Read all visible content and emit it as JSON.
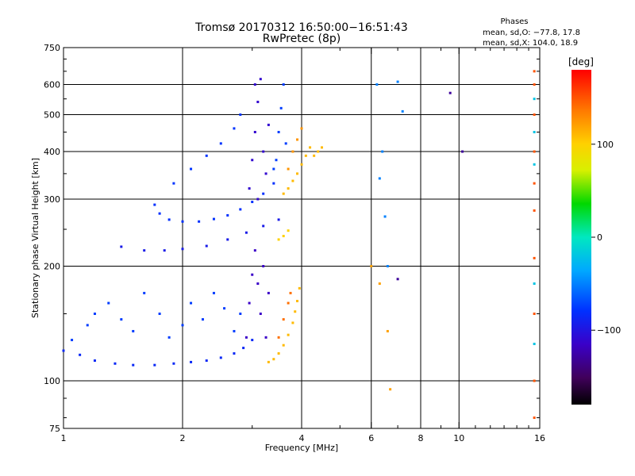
{
  "chart_data": {
    "type": "scatter",
    "title": "Tromsø 20170312 16:50:00−16:51:43",
    "subtitle": "RwPretec (8p)",
    "info": {
      "heading": "Phases",
      "line1": "mean, sd,O: −77.8, 17.8",
      "line2": "mean, sd,X: 104.0, 18.9"
    },
    "xlabel": "Frequency [MHz]",
    "ylabel": "Stationary phase Virtual Height [km]",
    "x_scale": "log",
    "y_scale": "log",
    "xlim": [
      1,
      16
    ],
    "ylim": [
      75,
      750
    ],
    "x_ticks": [
      1,
      2,
      4,
      6,
      8,
      10,
      16
    ],
    "x_tick_labels": [
      "1",
      "2",
      "4",
      "6",
      "8",
      "10",
      "16"
    ],
    "x_gridlines": [
      2,
      4,
      6,
      8,
      10
    ],
    "y_ticks": [
      75,
      100,
      200,
      300,
      400,
      500,
      600,
      750
    ],
    "y_tick_labels": [
      "75",
      "100",
      "200",
      "300",
      "400",
      "500",
      "600",
      "750"
    ],
    "y_gridlines": [
      100,
      200,
      300,
      400,
      500,
      600
    ],
    "colorbar": {
      "label": "[deg]",
      "range": [
        -180,
        180
      ],
      "ticks": [
        -100,
        0,
        100
      ],
      "tick_labels": [
        "−100",
        "0",
        "100"
      ],
      "colormap": "rainbow (black→purple→blue→cyan→green→yellow→orange→red)"
    },
    "series": [
      {
        "phase": -85,
        "points": [
          [
            1.0,
            120
          ],
          [
            1.1,
            117
          ],
          [
            1.2,
            113
          ],
          [
            1.35,
            111
          ],
          [
            1.5,
            110
          ],
          [
            1.7,
            110
          ],
          [
            1.9,
            111
          ],
          [
            2.1,
            112
          ],
          [
            2.3,
            113
          ],
          [
            2.5,
            115
          ],
          [
            2.7,
            118
          ],
          [
            2.85,
            122
          ],
          [
            3.0,
            128
          ]
        ]
      },
      {
        "phase": -75,
        "points": [
          [
            1.05,
            128
          ],
          [
            1.15,
            140
          ],
          [
            1.2,
            150
          ],
          [
            1.3,
            160
          ],
          [
            1.4,
            145
          ],
          [
            1.5,
            135
          ],
          [
            1.6,
            170
          ],
          [
            1.75,
            150
          ],
          [
            1.85,
            130
          ],
          [
            2.0,
            140
          ],
          [
            2.1,
            160
          ],
          [
            2.25,
            145
          ],
          [
            2.4,
            170
          ],
          [
            2.55,
            155
          ],
          [
            2.7,
            135
          ],
          [
            2.8,
            150
          ]
        ]
      },
      {
        "phase": -115,
        "points": [
          [
            2.9,
            130
          ],
          [
            2.95,
            160
          ],
          [
            3.0,
            190
          ],
          [
            3.05,
            220
          ],
          [
            3.1,
            180
          ],
          [
            3.15,
            150
          ],
          [
            3.2,
            200
          ],
          [
            3.25,
            130
          ],
          [
            3.3,
            170
          ]
        ]
      },
      {
        "phase": -95,
        "points": [
          [
            1.4,
            225
          ],
          [
            1.6,
            220
          ],
          [
            1.8,
            220
          ],
          [
            2.0,
            222
          ],
          [
            2.3,
            226
          ],
          [
            2.6,
            235
          ],
          [
            2.9,
            245
          ],
          [
            3.2,
            255
          ],
          [
            3.5,
            265
          ]
        ]
      },
      {
        "phase": -80,
        "points": [
          [
            1.7,
            290
          ],
          [
            1.75,
            275
          ],
          [
            1.85,
            265
          ],
          [
            2.0,
            262
          ],
          [
            2.2,
            262
          ],
          [
            2.4,
            266
          ],
          [
            2.6,
            272
          ],
          [
            2.8,
            282
          ],
          [
            3.0,
            295
          ],
          [
            3.2,
            310
          ],
          [
            3.4,
            330
          ]
        ]
      },
      {
        "phase": -78,
        "points": [
          [
            1.9,
            330
          ],
          [
            2.1,
            360
          ],
          [
            2.3,
            390
          ],
          [
            2.5,
            420
          ],
          [
            2.7,
            460
          ],
          [
            2.8,
            500
          ]
        ]
      },
      {
        "phase": -110,
        "points": [
          [
            2.95,
            320
          ],
          [
            3.0,
            380
          ],
          [
            3.05,
            450
          ],
          [
            3.1,
            540
          ],
          [
            3.15,
            620
          ],
          [
            3.2,
            400
          ],
          [
            3.25,
            350
          ],
          [
            3.3,
            470
          ],
          [
            3.05,
            600
          ],
          [
            3.1,
            300
          ]
        ]
      },
      {
        "phase": -75,
        "points": [
          [
            3.45,
            380
          ],
          [
            3.5,
            450
          ],
          [
            3.55,
            520
          ],
          [
            3.6,
            600
          ],
          [
            3.65,
            420
          ],
          [
            3.4,
            360
          ]
        ]
      },
      {
        "phase": 110,
        "points": [
          [
            3.3,
            112
          ],
          [
            3.4,
            114
          ],
          [
            3.5,
            118
          ],
          [
            3.6,
            124
          ],
          [
            3.7,
            132
          ],
          [
            3.8,
            142
          ],
          [
            3.85,
            152
          ],
          [
            3.9,
            162
          ],
          [
            3.95,
            175
          ]
        ]
      },
      {
        "phase": 140,
        "points": [
          [
            3.5,
            130
          ],
          [
            3.6,
            145
          ],
          [
            3.7,
            160
          ],
          [
            3.75,
            170
          ]
        ]
      },
      {
        "phase": 100,
        "points": [
          [
            3.5,
            235
          ],
          [
            3.6,
            240
          ],
          [
            3.7,
            248
          ]
        ]
      },
      {
        "phase": 110,
        "points": [
          [
            3.6,
            310
          ],
          [
            3.7,
            320
          ],
          [
            3.8,
            335
          ],
          [
            3.9,
            350
          ],
          [
            4.0,
            370
          ],
          [
            4.1,
            390
          ],
          [
            4.2,
            410
          ],
          [
            4.3,
            390
          ],
          [
            4.4,
            400
          ],
          [
            4.5,
            410
          ]
        ]
      },
      {
        "phase": 125,
        "points": [
          [
            3.7,
            360
          ],
          [
            3.8,
            400
          ],
          [
            3.9,
            430
          ],
          [
            4.0,
            460
          ]
        ]
      },
      {
        "phase": -50,
        "points": [
          [
            6.2,
            600
          ],
          [
            6.4,
            400
          ],
          [
            6.3,
            340
          ],
          [
            6.5,
            270
          ],
          [
            6.6,
            200
          ],
          [
            7.0,
            610
          ],
          [
            7.2,
            510
          ]
        ]
      },
      {
        "phase": 120,
        "points": [
          [
            6.0,
            200
          ],
          [
            6.3,
            180
          ],
          [
            6.6,
            135
          ],
          [
            6.7,
            95
          ]
        ]
      },
      {
        "phase": -130,
        "points": [
          [
            7.0,
            185
          ],
          [
            9.5,
            570
          ],
          [
            10.2,
            400
          ]
        ]
      },
      {
        "phase": 150,
        "points": [
          [
            15.5,
            650
          ],
          [
            15.5,
            600
          ],
          [
            15.5,
            500
          ],
          [
            15.5,
            400
          ],
          [
            15.5,
            330
          ],
          [
            15.5,
            280
          ],
          [
            15.5,
            210
          ],
          [
            15.5,
            150
          ],
          [
            15.5,
            100
          ],
          [
            15.5,
            80
          ]
        ]
      },
      {
        "phase": -20,
        "points": [
          [
            15.5,
            550
          ],
          [
            15.5,
            450
          ],
          [
            15.5,
            370
          ],
          [
            15.5,
            180
          ],
          [
            15.5,
            125
          ]
        ]
      }
    ]
  }
}
